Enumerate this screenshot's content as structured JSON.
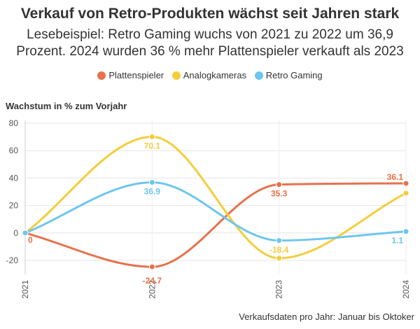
{
  "title": "Verkauf von Retro-Produkten wächst seit Jahren stark",
  "subtitle_lines": [
    "Lesebeispiel: Retro Gaming wuchs von 2021 zu 2022 um 36,9",
    "Prozent. 2024 wurden 36 % mehr Plattenspieler verkauft als 2023"
  ],
  "source": "Verkaufsdaten pro Jahr: Januar bis Oktoker",
  "chart_data": {
    "type": "line",
    "title": "Verkauf von Retro-Produkten wächst seit Jahren stark",
    "ylabel": "Wachstum in % zum Vorjahr",
    "xlabel": "",
    "x": [
      "2021",
      "2022",
      "2023",
      "2024"
    ],
    "ylim": [
      -25,
      80
    ],
    "yticks": [
      -20,
      0,
      20,
      40,
      60,
      80
    ],
    "grid": "horizontal",
    "legend_position": "top",
    "series": [
      {
        "name": "Plattenspieler",
        "color": "#e8714a",
        "values": [
          0,
          -24.7,
          35.3,
          36.1
        ],
        "labels": [
          "0",
          "-24.7",
          "35.3",
          "36.1"
        ]
      },
      {
        "name": "Analogkameras",
        "color": "#f5cd3a",
        "values": [
          0,
          70.1,
          -18.4,
          29
        ],
        "labels": [
          "",
          "70.1",
          "-18.4",
          ""
        ]
      },
      {
        "name": "Retro Gaming",
        "color": "#6ec6ee",
        "values": [
          0,
          36.9,
          -5.5,
          1.1
        ],
        "labels": [
          "",
          "36.9",
          "",
          "1.1"
        ]
      }
    ]
  }
}
